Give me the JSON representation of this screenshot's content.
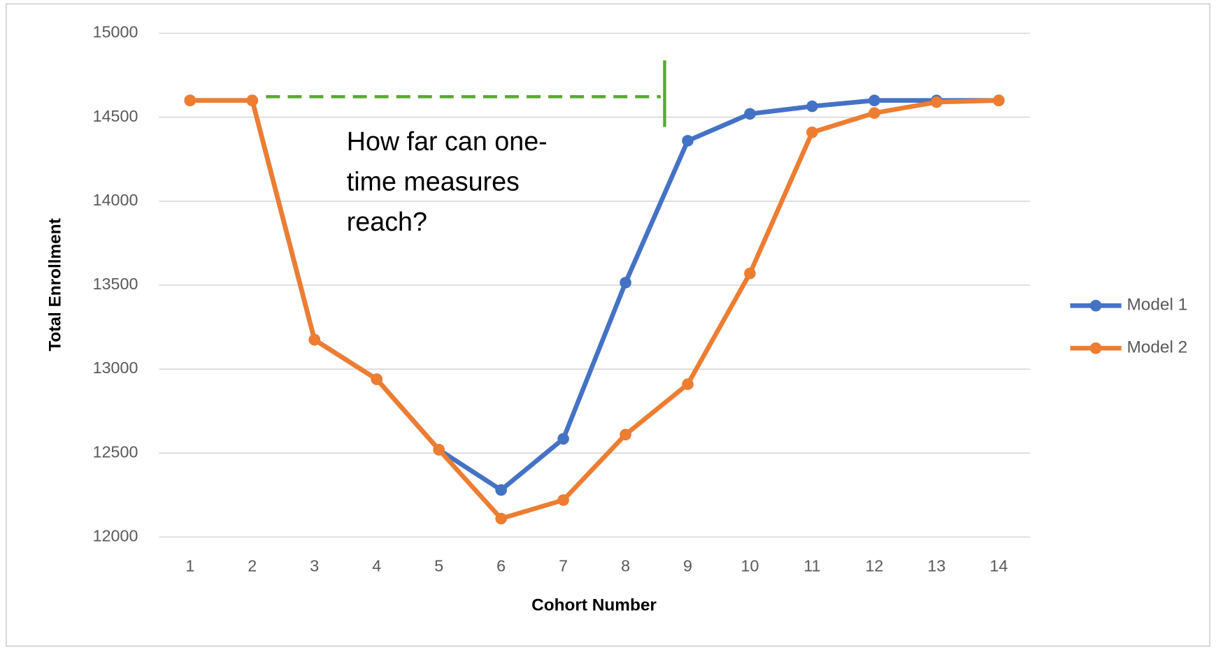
{
  "chart_data": {
    "type": "line",
    "x_label": "Cohort Number",
    "y_label": "Total Enrollment",
    "annotation": [
      "How far can one-",
      "time measures",
      "reach?"
    ],
    "categories": [
      "1",
      "2",
      "3",
      "4",
      "5",
      "6",
      "7",
      "8",
      "9",
      "10",
      "11",
      "12",
      "13",
      "14"
    ],
    "series": [
      {
        "name": "Model 1",
        "color": "#4472c4",
        "values": [
          14600,
          14600,
          13175,
          12940,
          12520,
          12280,
          12585,
          13515,
          14360,
          14520,
          14565,
          14600,
          14600,
          14600
        ]
      },
      {
        "name": "Model 2",
        "color": "#ed7d31",
        "values": [
          14600,
          14600,
          13175,
          12940,
          12520,
          12110,
          12220,
          12610,
          12910,
          13570,
          14410,
          14525,
          14590,
          14600
        ]
      }
    ],
    "ylim": [
      12000,
      15000
    ],
    "yticks": [
      12000,
      12500,
      13000,
      13500,
      14000,
      14500,
      15000
    ],
    "grid": true,
    "legend": "right"
  }
}
